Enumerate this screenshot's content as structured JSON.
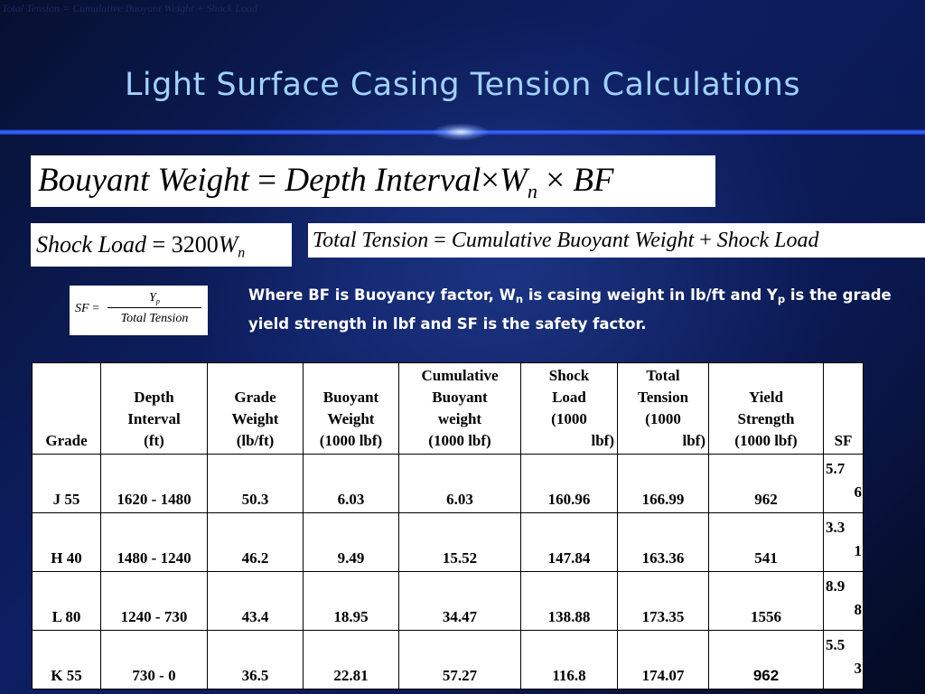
{
  "top_caption": "Total Tension = Cumulative Buoyant Weight + Shock Load",
  "title": "Light Surface Casing Tension Calculations",
  "equations": {
    "buoyant_weight": {
      "lhs": "Bouyant Weight",
      "eq": "=",
      "t1": "Depth Interval",
      "times": "×",
      "w": "W",
      "w_sub": "n",
      "bf": "BF"
    },
    "shock_load": {
      "lhs": "Shock Load",
      "eq": "=",
      "num": "3200",
      "w": "W",
      "w_sub": "n"
    },
    "total_tension": {
      "lhs": "Total Tension",
      "eq": "=",
      "t1": "Cumulative Buoyant Weight",
      "plus": "+",
      "t2": "Shock Load"
    },
    "safety_factor": {
      "lhs": "SF",
      "eq": "=",
      "num": "Y",
      "num_sub": "p",
      "den": "Total Tension"
    }
  },
  "note": {
    "part1": "Where BF is Buoyancy factor, W",
    "sub1": "n",
    "part2": " is casing weight in lb/ft and Y",
    "sub2": "p",
    "part3": " is the grade yield strength in lbf and SF is the safety factor."
  },
  "table": {
    "headers": {
      "grade": "Grade",
      "depth_l1": "Depth",
      "depth_l2": "Interval",
      "depth_l3": "(ft)",
      "gw_l1": "Grade",
      "gw_l2": "Weight",
      "gw_l3": "(lb/ft)",
      "bw_l1": "Buoyant",
      "bw_l2": "Weight",
      "bw_l3": "(1000 lbf)",
      "cbw_l1": "Cumulative",
      "cbw_l2": "Buoyant",
      "cbw_l3": "weight",
      "cbw_l4": "(1000 lbf)",
      "sl_l1": "Shock",
      "sl_l2": "Load",
      "sl_l3": "(1000",
      "sl_l4": "lbf)",
      "tt_l1": "Total",
      "tt_l2": "Tension",
      "tt_l3": "(1000",
      "tt_l4": "lbf)",
      "ys_l1": "Yield",
      "ys_l2": "Strength",
      "ys_l3": "(1000 lbf)",
      "sf": "SF"
    },
    "rows": [
      {
        "grade": "J 55",
        "depth": "1620 - 1480",
        "grade_weight": "50.3",
        "buoyant_weight": "6.03",
        "cumulative": "6.03",
        "shock": "160.96",
        "total": "166.99",
        "yield": "962",
        "sf_a": "5.7",
        "sf_b": "6"
      },
      {
        "grade": "H 40",
        "depth": "1480 - 1240",
        "grade_weight": "46.2",
        "buoyant_weight": "9.49",
        "cumulative": "15.52",
        "shock": "147.84",
        "total": "163.36",
        "yield": "541",
        "sf_a": "3.3",
        "sf_b": "1"
      },
      {
        "grade": "L 80",
        "depth": "1240 - 730",
        "grade_weight": "43.4",
        "buoyant_weight": "18.95",
        "cumulative": "34.47",
        "shock": "138.88",
        "total": "173.35",
        "yield": "1556",
        "sf_a": "8.9",
        "sf_b": "8"
      },
      {
        "grade": "K 55",
        "depth": "730 - 0",
        "grade_weight": "36.5",
        "buoyant_weight": "22.81",
        "cumulative": "57.27",
        "shock": "116.8",
        "total": "174.07",
        "yield": "962",
        "sf_a": "5.5",
        "sf_b": "3"
      }
    ]
  }
}
